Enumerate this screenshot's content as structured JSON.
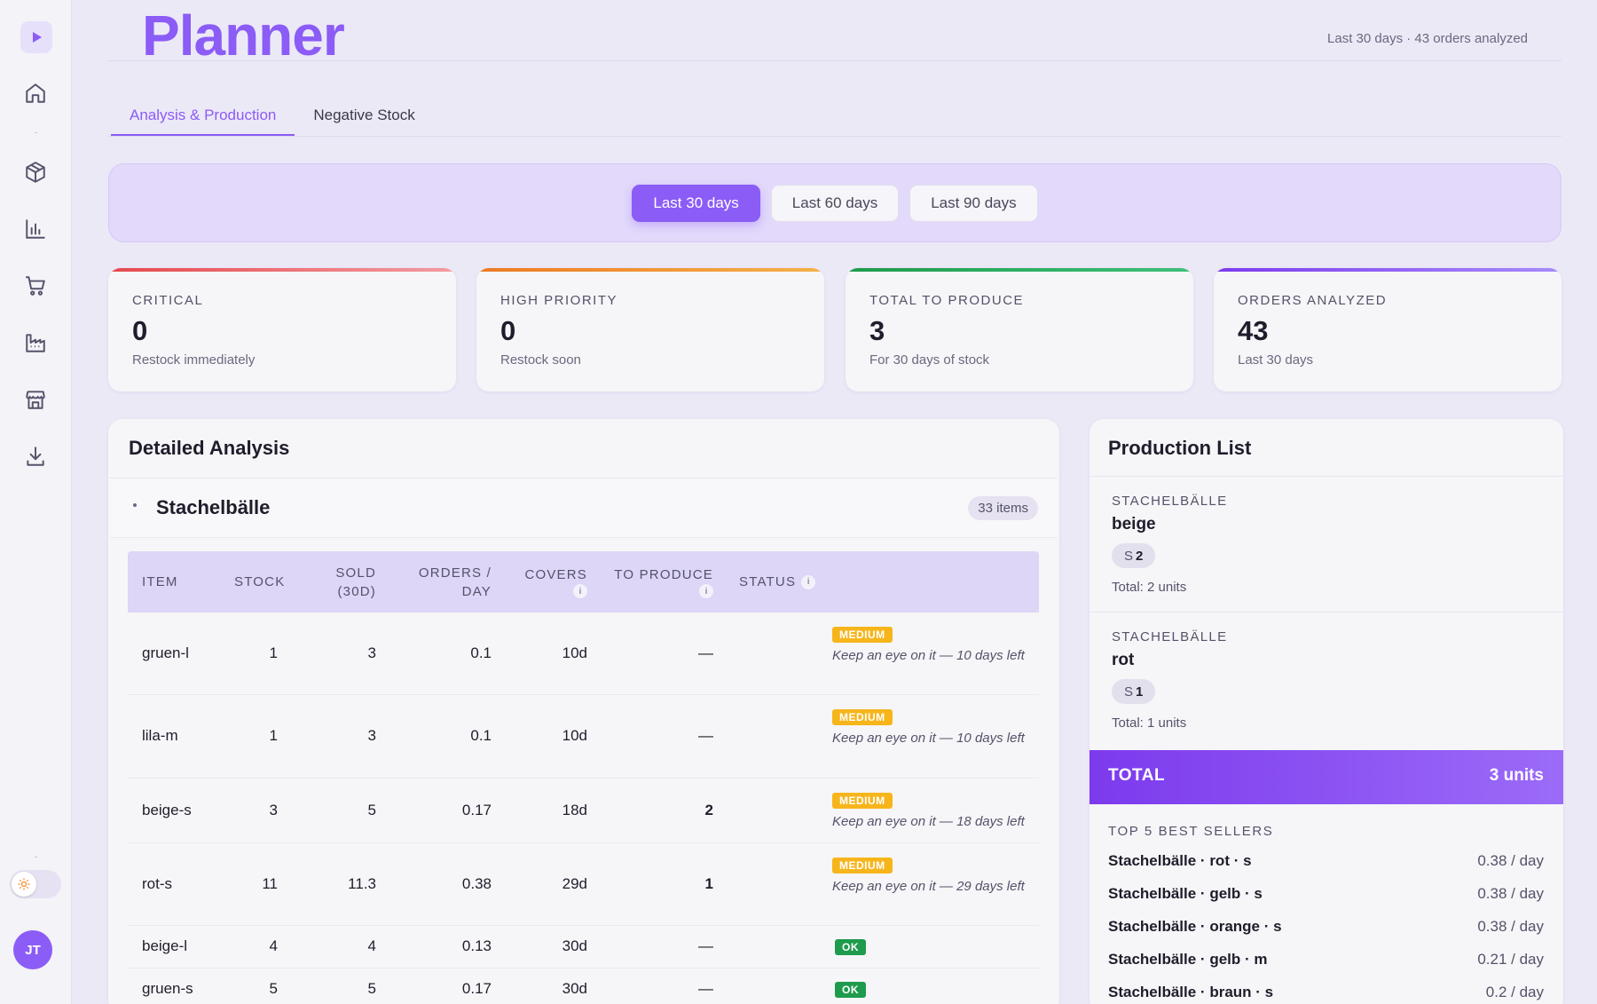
{
  "app": {
    "title": "Planner",
    "meta": "Last 30 days · 43 orders analyzed"
  },
  "sidebar": {
    "logo": "play-icon",
    "items": [
      "home-icon",
      "box-icon",
      "bar-chart-icon",
      "cart-icon",
      "factory-icon",
      "store-icon",
      "download-icon"
    ],
    "user_initials": "JT"
  },
  "tabs": [
    {
      "label": "Analysis & Production",
      "active": true
    },
    {
      "label": "Negative Stock",
      "active": false
    }
  ],
  "periods": [
    {
      "label": "Last 30 days",
      "active": true
    },
    {
      "label": "Last 60 days",
      "active": false
    },
    {
      "label": "Last 90 days",
      "active": false
    }
  ],
  "kpis": [
    {
      "label": "CRITICAL",
      "value": "0",
      "sub": "Restock immediately",
      "color": "#e5484d"
    },
    {
      "label": "HIGH PRIORITY",
      "value": "0",
      "sub": "Restock soon",
      "color": "#f08c2e"
    },
    {
      "label": "TOTAL TO PRODUCE",
      "value": "3",
      "sub": "For 30 days of stock",
      "color": "#1e9b4c"
    },
    {
      "label": "ORDERS ANALYZED",
      "value": "43",
      "sub": "Last 30 days",
      "color": "#8b5cf6"
    }
  ],
  "analysis": {
    "title": "Detailed Analysis",
    "group": {
      "name": "Stachelbälle",
      "count": "33 items"
    },
    "columns": {
      "item": "ITEM",
      "stock": "STOCK",
      "sold_1": "SOLD",
      "sold_2": "(30D)",
      "orders_1": "ORDERS /",
      "orders_2": "DAY",
      "covers": "COVERS",
      "to_produce": "TO PRODUCE",
      "status": "STATUS",
      "info": "i"
    },
    "rows": [
      {
        "item": "gruen-l",
        "stock": "1",
        "sold": "3",
        "orders": "0.1",
        "covers": "10d",
        "produce": "—",
        "badge": "MEDIUM",
        "note": "Keep an eye on it — 10 days left"
      },
      {
        "item": "lila-m",
        "stock": "1",
        "sold": "3",
        "orders": "0.1",
        "covers": "10d",
        "produce": "—",
        "badge": "MEDIUM",
        "note": "Keep an eye on it — 10 days left"
      },
      {
        "item": "beige-s",
        "stock": "3",
        "sold": "5",
        "orders": "0.17",
        "covers": "18d",
        "produce": "2",
        "badge": "MEDIUM",
        "note": "Keep an eye on it — 18 days left"
      },
      {
        "item": "rot-s",
        "stock": "11",
        "sold": "11.3",
        "orders": "0.38",
        "covers": "29d",
        "produce": "1",
        "badge": "MEDIUM",
        "note": "Keep an eye on it — 29 days left"
      },
      {
        "item": "beige-l",
        "stock": "4",
        "sold": "4",
        "orders": "0.13",
        "covers": "30d",
        "produce": "—",
        "badge": "OK",
        "note": ""
      },
      {
        "item": "gruen-s",
        "stock": "5",
        "sold": "5",
        "orders": "0.17",
        "covers": "30d",
        "produce": "—",
        "badge": "OK",
        "note": ""
      }
    ]
  },
  "production": {
    "title": "Production List",
    "entries": [
      {
        "group": "STACHELBÄLLE",
        "color": "beige",
        "size": "S",
        "qty": "2",
        "total": "Total: 2 units"
      },
      {
        "group": "STACHELBÄLLE",
        "color": "rot",
        "size": "S",
        "qty": "1",
        "total": "Total: 1 units"
      }
    ],
    "total_label": "TOTAL",
    "total_value": "3 units",
    "best_sellers_title": "TOP 5 BEST SELLERS",
    "best_sellers": [
      {
        "name": "Stachelbälle · rot · s",
        "rate": "0.38 / day"
      },
      {
        "name": "Stachelbälle · gelb · s",
        "rate": "0.38 / day"
      },
      {
        "name": "Stachelbälle · orange · s",
        "rate": "0.38 / day"
      },
      {
        "name": "Stachelbälle · gelb · m",
        "rate": "0.21 / day"
      },
      {
        "name": "Stachelbälle · braun · s",
        "rate": "0.2 / day"
      }
    ]
  }
}
